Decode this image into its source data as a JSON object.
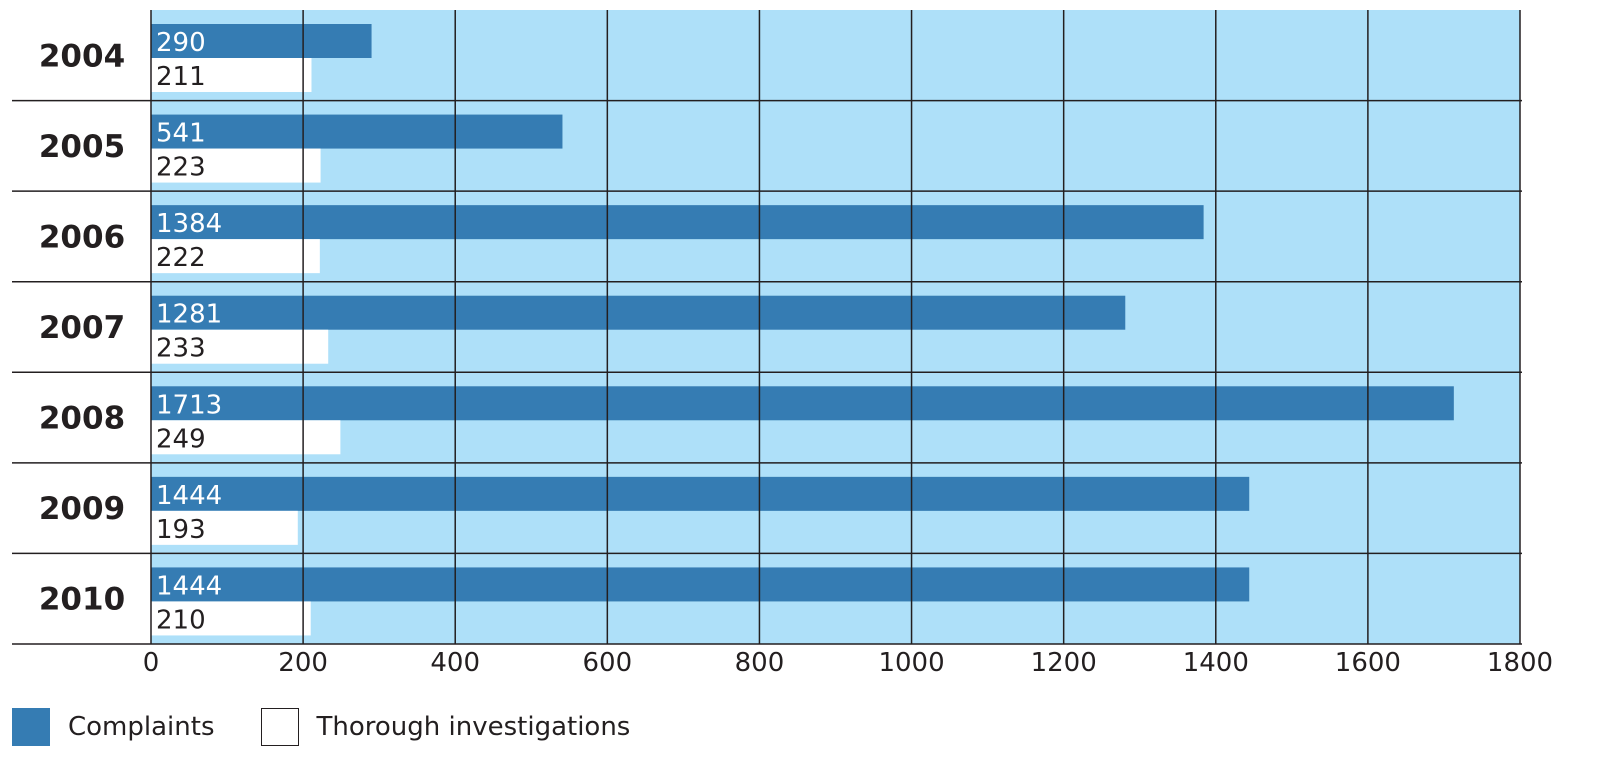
{
  "chart_data": {
    "type": "bar",
    "orientation": "horizontal",
    "categories": [
      "2004",
      "2005",
      "2006",
      "2007",
      "2008",
      "2009",
      "2010"
    ],
    "series": [
      {
        "name": "Complaints",
        "values": [
          290,
          541,
          1384,
          1281,
          1713,
          1444,
          1444
        ],
        "color": "#357cb3",
        "label_color": "#ffffff"
      },
      {
        "name": "Thorough investigations",
        "values": [
          211,
          223,
          222,
          233,
          249,
          193,
          210
        ],
        "color": "#ffffff",
        "label_color": "#231f20"
      }
    ],
    "xlim": [
      0,
      1800
    ],
    "xticks": [
      "0",
      "200",
      "400",
      "600",
      "800",
      "1000",
      "1200",
      "1400",
      "1600",
      "1800"
    ],
    "grid": true,
    "plot_background": "#aee0f9",
    "legend_position": "bottom-left"
  }
}
